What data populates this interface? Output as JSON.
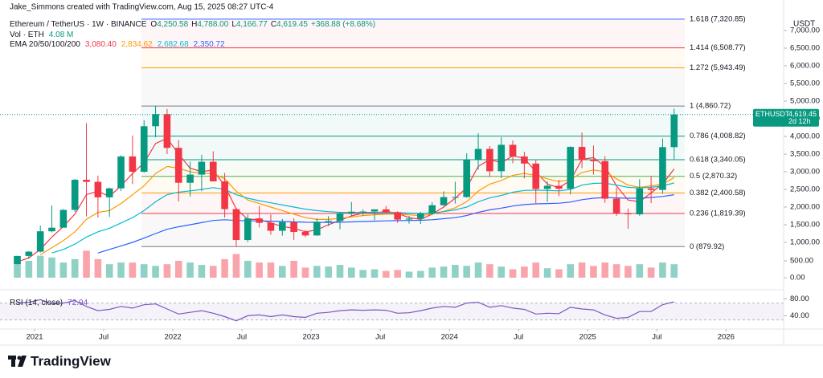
{
  "chart_data": {
    "type": "candlestick",
    "attribution": "Jake_Simmons created with TradingView.com, Aug 15, 2025 08:27 UTC-4",
    "symbol": "Ethereum / TetherUS · 1W · BINANCE",
    "ohlc": [
      {
        "key": "O",
        "value": "4,250.58"
      },
      {
        "key": "H",
        "value": "4,788.00"
      },
      {
        "key": "L",
        "value": "4,166.77"
      },
      {
        "key": "C",
        "value": "4,619.45"
      }
    ],
    "change": "+368.88 (+8.68%)",
    "unit": "USDT",
    "brand": "TradingView",
    "up_color": "#089981",
    "down_color": "#f23645",
    "x": [
      "2020-11",
      "2020-12",
      "2021-01",
      "2021-02",
      "2021-03",
      "2021-04",
      "2021-05",
      "2021-06",
      "2021-07",
      "2021-08",
      "2021-09",
      "2021-10",
      "2021-11",
      "2021-12",
      "2022-01",
      "2022-02",
      "2022-03",
      "2022-04",
      "2022-05",
      "2022-06",
      "2022-07",
      "2022-08",
      "2022-09",
      "2022-10",
      "2022-11",
      "2022-12",
      "2023-01",
      "2023-02",
      "2023-03",
      "2023-04",
      "2023-05",
      "2023-06",
      "2023-07",
      "2023-08",
      "2023-09",
      "2023-10",
      "2023-11",
      "2023-12",
      "2024-01",
      "2024-02",
      "2024-03",
      "2024-04",
      "2024-05",
      "2024-06",
      "2024-07",
      "2024-08",
      "2024-09",
      "2024-10",
      "2024-11",
      "2024-12",
      "2025-01",
      "2025-02",
      "2025-03",
      "2025-04",
      "2025-05",
      "2025-06",
      "2025-07",
      "2025-08"
    ],
    "open": [
      386,
      616,
      737,
      1314,
      1416,
      1919,
      2773,
      2714,
      2275,
      2530,
      3433,
      3000,
      4288,
      4631,
      3676,
      2688,
      2919,
      3282,
      2727,
      1941,
      1067,
      1678,
      1553,
      1328,
      1572,
      1295,
      1196,
      1585,
      1605,
      1822,
      1869,
      1874,
      1934,
      1856,
      1645,
      1671,
      1815,
      2052,
      2282,
      2283,
      3340,
      3646,
      3014,
      3763,
      3433,
      3232,
      2513,
      2602,
      2518,
      3703,
      3332,
      3300,
      2237,
      1822,
      1794,
      2528,
      2485,
      3697
    ],
    "high": [
      622,
      755,
      1476,
      2042,
      1943,
      2800,
      4372,
      2891,
      2550,
      3466,
      4027,
      4460,
      4868,
      4778,
      3900,
      3281,
      3480,
      3580,
      2965,
      1972,
      1786,
      2030,
      1790,
      1664,
      1680,
      1353,
      1680,
      1742,
      1857,
      2141,
      1930,
      1930,
      2029,
      1880,
      1750,
      1865,
      2140,
      2445,
      2717,
      3523,
      4093,
      3730,
      3977,
      3887,
      3563,
      3350,
      2730,
      2770,
      3720,
      4109,
      3745,
      3440,
      2550,
      1955,
      2788,
      2880,
      3940,
      4788
    ],
    "low": [
      374,
      535,
      714,
      1283,
      1423,
      1863,
      1737,
      1700,
      1718,
      2451,
      2652,
      2970,
      3976,
      3500,
      2159,
      2300,
      2450,
      2725,
      1700,
      880,
      1006,
      1422,
      1220,
      1190,
      1073,
      1150,
      1190,
      1461,
      1370,
      1761,
      1760,
      1626,
      1820,
      1550,
      1530,
      1521,
      1770,
      2030,
      2100,
      2265,
      3056,
      2852,
      2817,
      3240,
      2810,
      2111,
      2150,
      2310,
      2357,
      3100,
      2920,
      2120,
      1754,
      1385,
      1753,
      2111,
      2375,
      3354
    ],
    "close": [
      616,
      737,
      1314,
      1416,
      1919,
      2773,
      2714,
      2275,
      2530,
      3433,
      3000,
      4288,
      4631,
      3676,
      2688,
      2919,
      3282,
      2727,
      1941,
      1067,
      1678,
      1553,
      1328,
      1572,
      1295,
      1196,
      1585,
      1605,
      1822,
      1869,
      1874,
      1934,
      1856,
      1645,
      1671,
      1815,
      2052,
      2282,
      2283,
      3340,
      3646,
      3014,
      3763,
      3433,
      3232,
      2513,
      2602,
      2518,
      3703,
      3332,
      3300,
      2237,
      1822,
      1794,
      2528,
      2485,
      3697,
      4619.45
    ],
    "xlim": [
      "2020-10",
      "2026-06"
    ],
    "xticks": [
      {
        "value": "2021-01",
        "label": "2021"
      },
      {
        "value": "2021-07",
        "label": "Jul"
      },
      {
        "value": "2022-01",
        "label": "2022"
      },
      {
        "value": "2022-07",
        "label": "Jul"
      },
      {
        "value": "2023-01",
        "label": "2023"
      },
      {
        "value": "2023-07",
        "label": "Jul"
      },
      {
        "value": "2024-01",
        "label": "2024"
      },
      {
        "value": "2024-07",
        "label": "Jul"
      },
      {
        "value": "2025-01",
        "label": "2025"
      },
      {
        "value": "2025-07",
        "label": "Jul"
      },
      {
        "value": "2026-01",
        "label": "2026"
      }
    ],
    "ylim": [
      0,
      7545
    ],
    "yticks": [
      {
        "value": 1000,
        "label": "1,000.00"
      },
      {
        "value": 1500,
        "label": "1,500.00"
      },
      {
        "value": 2000,
        "label": "2,000.00"
      },
      {
        "value": 2500,
        "label": "2,500.00"
      },
      {
        "value": 3000,
        "label": "3,000.00"
      },
      {
        "value": 3500,
        "label": "3,500.00"
      },
      {
        "value": 4000,
        "label": "4,000.00"
      },
      {
        "value": 4500,
        "label": "4,500.00"
      },
      {
        "value": 5000,
        "label": "5,000.00"
      },
      {
        "value": 5500,
        "label": "5,500.00"
      },
      {
        "value": 6000,
        "label": "6,000.00"
      },
      {
        "value": 6500,
        "label": "6,500.00"
      },
      {
        "value": 7000,
        "label": "7,000.00"
      }
    ],
    "price_tag": {
      "symbol": "ETHUSDT",
      "value_label": "4,619.45",
      "countdown": "2d 12h"
    },
    "ema": {
      "title": "EMA 20/50/100/200",
      "lines": [
        {
          "color": "#f23645",
          "value_label": "3,080.40",
          "values": [
            450,
            560,
            800,
            1150,
            1450,
            1800,
            2350,
            2450,
            2300,
            2600,
            2950,
            3250,
            3800,
            3950,
            3500,
            3100,
            3000,
            3050,
            2600,
            1950,
            1650,
            1650,
            1550,
            1450,
            1400,
            1300,
            1350,
            1500,
            1620,
            1750,
            1830,
            1830,
            1880,
            1820,
            1700,
            1650,
            1800,
            2000,
            2250,
            2550,
            3150,
            3350,
            3250,
            3450,
            3380,
            3000,
            2650,
            2550,
            2750,
            3350,
            3400,
            3150,
            2600,
            2200,
            2150,
            2400,
            2650,
            3080.4
          ]
        },
        {
          "color": "#ff9800",
          "value_label": "2,834.62",
          "values": [
            null,
            null,
            650,
            850,
            1050,
            1300,
            1650,
            1850,
            1900,
            2100,
            2350,
            2600,
            2950,
            3150,
            3100,
            3000,
            2950,
            2950,
            2800,
            2450,
            2200,
            2100,
            2000,
            1900,
            1800,
            1700,
            1650,
            1650,
            1680,
            1720,
            1760,
            1780,
            1800,
            1800,
            1780,
            1760,
            1800,
            1880,
            1980,
            2150,
            2450,
            2650,
            2750,
            2900,
            2950,
            2900,
            2800,
            2720,
            2780,
            2980,
            3050,
            3000,
            2800,
            2620,
            2560,
            2600,
            2650,
            2834.62
          ]
        },
        {
          "color": "#00bcd4",
          "value_label": "2,682.68",
          "values": [
            null,
            null,
            null,
            700,
            800,
            950,
            1150,
            1300,
            1400,
            1550,
            1700,
            1900,
            2150,
            2350,
            2420,
            2460,
            2500,
            2550,
            2500,
            2350,
            2250,
            2180,
            2120,
            2060,
            2000,
            1940,
            1900,
            1870,
            1850,
            1850,
            1850,
            1850,
            1850,
            1840,
            1830,
            1820,
            1830,
            1870,
            1920,
            2000,
            2150,
            2260,
            2330,
            2420,
            2470,
            2480,
            2470,
            2460,
            2500,
            2620,
            2670,
            2680,
            2620,
            2560,
            2540,
            2560,
            2600,
            2682.68
          ]
        },
        {
          "color": "#2962ff",
          "value_label": "2,350.72",
          "values": [
            null,
            null,
            null,
            null,
            null,
            null,
            null,
            700,
            800,
            900,
            1000,
            1120,
            1250,
            1370,
            1440,
            1500,
            1560,
            1620,
            1640,
            1620,
            1610,
            1610,
            1600,
            1590,
            1580,
            1570,
            1565,
            1565,
            1570,
            1580,
            1590,
            1600,
            1610,
            1615,
            1620,
            1625,
            1640,
            1670,
            1700,
            1760,
            1850,
            1920,
            1970,
            2030,
            2070,
            2090,
            2100,
            2110,
            2140,
            2210,
            2250,
            2270,
            2260,
            2250,
            2250,
            2270,
            2300,
            2350.72
          ]
        }
      ]
    },
    "volume": {
      "title": "Vol · ETH",
      "value_label": "4.08 M",
      "ylim": [
        0,
        1000
      ],
      "yticks": [
        {
          "value": 0,
          "label": "0.00"
        },
        {
          "value": 500,
          "label": "500.00"
        }
      ],
      "values": [
        450,
        500,
        650,
        600,
        450,
        550,
        800,
        550,
        400,
        450,
        450,
        400,
        350,
        400,
        500,
        450,
        380,
        350,
        550,
        700,
        500,
        450,
        450,
        350,
        500,
        300,
        350,
        330,
        380,
        300,
        230,
        250,
        200,
        230,
        180,
        200,
        300,
        330,
        380,
        350,
        450,
        400,
        330,
        250,
        330,
        450,
        280,
        250,
        400,
        450,
        350,
        450,
        400,
        350,
        400,
        300,
        450,
        400
      ]
    },
    "rsi": {
      "title": "RSI (14, close)",
      "value_label": "72.94",
      "color": "#7e57c2",
      "ylim": [
        18,
        94
      ],
      "yticks": [
        {
          "value": 80,
          "label": "80.00"
        },
        {
          "value": 40,
          "label": "40.00"
        }
      ],
      "values": [
        70,
        72,
        78,
        68,
        70,
        76,
        62,
        52,
        55,
        62,
        58,
        66,
        68,
        56,
        44,
        48,
        52,
        46,
        38,
        28,
        40,
        42,
        38,
        42,
        38,
        36,
        46,
        48,
        52,
        54,
        53,
        54,
        53,
        46,
        47,
        52,
        58,
        62,
        60,
        70,
        72,
        60,
        64,
        58,
        55,
        44,
        46,
        45,
        60,
        56,
        54,
        42,
        34,
        36,
        50,
        50,
        66,
        72.94
      ]
    },
    "fib": [
      {
        "price": 7320.85,
        "label": "1.618 (7,320.85)",
        "color": "#2962ff"
      },
      {
        "price": 6508.77,
        "label": "1.414 (6,508.77)",
        "color": "#f23645"
      },
      {
        "price": 5943.49,
        "label": "1.272 (5,943.49)",
        "color": "#ff9800"
      },
      {
        "price": 4860.72,
        "label": "1 (4,860.72)",
        "color": "#787b86"
      },
      {
        "price": 4008.82,
        "label": "0.786 (4,008.82)",
        "color": "#089981"
      },
      {
        "price": 3340.05,
        "label": "0.618 (3,340.05)",
        "color": "#089981"
      },
      {
        "price": 2870.32,
        "label": "0.5 (2,870.32)",
        "color": "#4caf50"
      },
      {
        "price": 2400.58,
        "label": "0.382 (2,400.58)",
        "color": "#ff9800"
      },
      {
        "price": 1819.39,
        "label": "0.236 (1,819.39)",
        "color": "#f23645"
      },
      {
        "price": 879.92,
        "label": "0 (879.92)",
        "color": "#787b86"
      }
    ]
  }
}
